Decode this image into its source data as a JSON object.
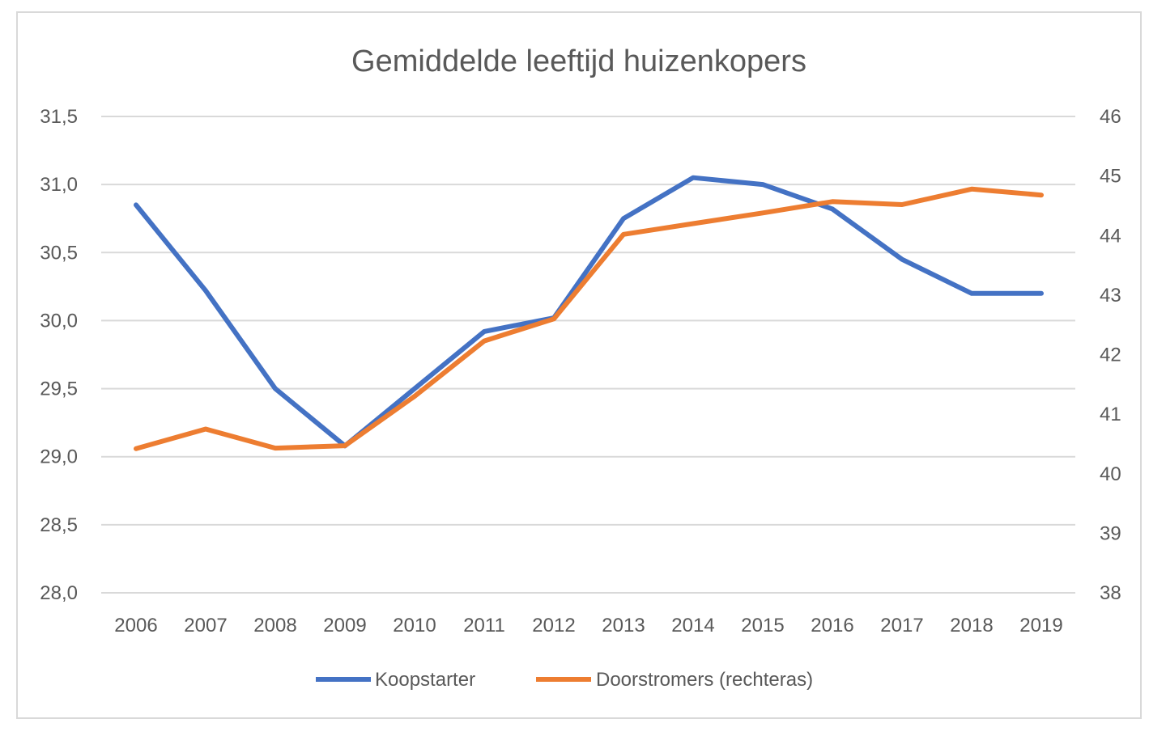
{
  "chart_data": {
    "type": "line",
    "title": "Gemiddelde leeftijd huizenkopers",
    "categories": [
      "2006",
      "2007",
      "2008",
      "2009",
      "2010",
      "2011",
      "2012",
      "2013",
      "2014",
      "2015",
      "2016",
      "2017",
      "2018",
      "2019"
    ],
    "left_axis": {
      "ylim": [
        28.0,
        31.5
      ],
      "ticks": [
        28.0,
        28.5,
        29.0,
        29.5,
        30.0,
        30.5,
        31.0,
        31.5
      ],
      "tick_labels": [
        "28,0",
        "28,5",
        "29,0",
        "29,5",
        "30,0",
        "30,5",
        "31,0",
        "31,5"
      ]
    },
    "right_axis": {
      "ylim": [
        38,
        46
      ],
      "ticks": [
        38,
        39,
        40,
        41,
        42,
        43,
        44,
        45,
        46
      ],
      "tick_labels": [
        "38",
        "39",
        "40",
        "41",
        "42",
        "43",
        "44",
        "45",
        "46"
      ]
    },
    "series": [
      {
        "name": "Koopstarter",
        "axis": "left",
        "color": "#4472c4",
        "values": [
          30.85,
          30.22,
          29.5,
          29.08,
          29.5,
          29.92,
          30.02,
          30.75,
          31.05,
          31.0,
          30.82,
          30.45,
          30.2,
          30.2
        ]
      },
      {
        "name": "Doorstromers (rechteras)",
        "axis": "right",
        "color": "#ed7d31",
        "values": [
          40.42,
          40.75,
          40.43,
          40.47,
          41.3,
          42.23,
          42.6,
          44.02,
          44.2,
          44.38,
          44.57,
          44.52,
          44.78,
          44.68
        ]
      }
    ],
    "grid": true,
    "legend_position": "bottom"
  }
}
